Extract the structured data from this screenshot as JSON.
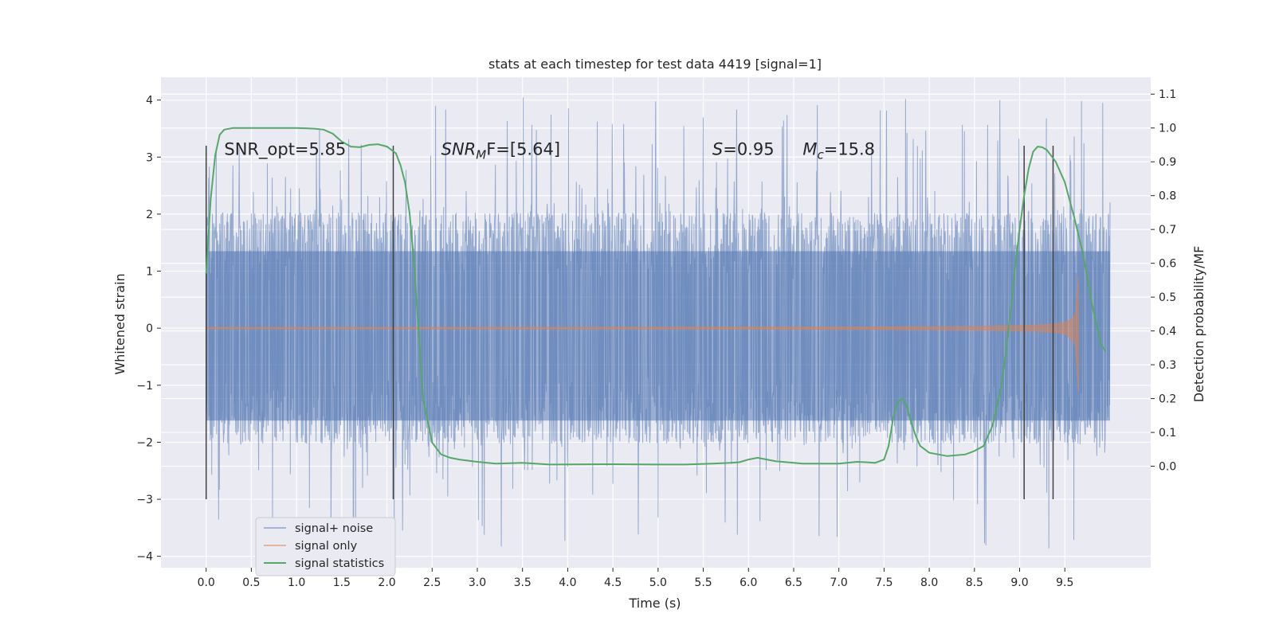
{
  "chart_data": {
    "type": "line",
    "title": "stats at each timestep for test data 4419 [signal=1]",
    "xlabel": "Time (s)",
    "ylabel": "Whitened strain",
    "y2label": "Detection probability/MF",
    "xlim": [
      -0.5,
      10.45
    ],
    "ylim": [
      -4.2,
      4.4
    ],
    "y2lim": [
      -0.3,
      1.15
    ],
    "x_ticks": [
      0.0,
      0.5,
      1.0,
      1.5,
      2.0,
      2.5,
      3.0,
      3.5,
      4.0,
      4.5,
      5.0,
      5.5,
      6.0,
      6.5,
      7.0,
      7.5,
      8.0,
      8.5,
      9.0,
      9.5
    ],
    "x_tick_labels": [
      "0.0",
      "0.5",
      "1.0",
      "1.5",
      "2.0",
      "2.5",
      "3.0",
      "3.5",
      "4.0",
      "4.5",
      "5.0",
      "5.5",
      "6.0",
      "6.5",
      "7.0",
      "7.5",
      "8.0",
      "8.5",
      "9.0",
      "9.5"
    ],
    "y_ticks": [
      -4,
      -3,
      -2,
      -1,
      0,
      1,
      2,
      3,
      4
    ],
    "y_tick_labels": [
      "−4",
      "−3",
      "−2",
      "−1",
      "0",
      "1",
      "2",
      "3",
      "4"
    ],
    "y2_ticks": [
      0.0,
      0.1,
      0.2,
      0.3,
      0.4,
      0.5,
      0.6,
      0.7,
      0.8,
      0.9,
      1.0,
      1.1
    ],
    "y2_tick_labels": [
      "0.0",
      "0.1",
      "0.2",
      "0.3",
      "0.4",
      "0.5",
      "0.6",
      "0.7",
      "0.8",
      "0.9",
      "1.0",
      "1.1"
    ],
    "grid": true,
    "legend_position": "bottom-left",
    "series": [
      {
        "name": "signal+ noise",
        "color": "#4c72b0",
        "kind": "noise",
        "x_range": [
          0.0,
          10.0
        ],
        "core_amplitude": 1.35,
        "peak_range": [
          2.0,
          4.05
        ],
        "min_range": [
          -3.9,
          -2.0
        ]
      },
      {
        "name": "signal only",
        "color": "#dd8452",
        "kind": "chirp",
        "x_range": [
          0.0,
          9.65
        ],
        "peak_time": 9.65,
        "peak_amplitude": 0.9
      },
      {
        "name": "signal statistics",
        "color": "#55a868",
        "axis": "right",
        "x": [
          0.0,
          0.05,
          0.1,
          0.15,
          0.2,
          0.3,
          0.5,
          1.0,
          1.2,
          1.3,
          1.4,
          1.5,
          1.6,
          1.7,
          1.8,
          1.9,
          2.0,
          2.1,
          2.15,
          2.2,
          2.25,
          2.3,
          2.35,
          2.4,
          2.5,
          2.6,
          2.7,
          2.8,
          3.0,
          3.2,
          3.5,
          3.8,
          4.5,
          5.0,
          5.3,
          5.6,
          5.8,
          5.9,
          6.0,
          6.1,
          6.3,
          6.6,
          7.0,
          7.2,
          7.3,
          7.4,
          7.5,
          7.55,
          7.6,
          7.65,
          7.7,
          7.75,
          7.8,
          7.85,
          7.9,
          8.0,
          8.2,
          8.4,
          8.5,
          8.6,
          8.7,
          8.75,
          8.8,
          8.85,
          8.9,
          8.95,
          9.0,
          9.05,
          9.1,
          9.15,
          9.2,
          9.25,
          9.3,
          9.4,
          9.5,
          9.6,
          9.7,
          9.8,
          9.9,
          9.95
        ],
        "y": [
          0.57,
          0.79,
          0.92,
          0.98,
          0.995,
          1.0,
          1.0,
          1.0,
          0.998,
          0.995,
          0.983,
          0.96,
          0.945,
          0.943,
          0.95,
          0.952,
          0.945,
          0.925,
          0.89,
          0.84,
          0.75,
          0.6,
          0.4,
          0.2,
          0.07,
          0.035,
          0.025,
          0.02,
          0.013,
          0.008,
          0.01,
          0.005,
          0.006,
          0.005,
          0.005,
          0.008,
          0.01,
          0.012,
          0.02,
          0.025,
          0.015,
          0.008,
          0.008,
          0.013,
          0.012,
          0.01,
          0.02,
          0.06,
          0.14,
          0.19,
          0.2,
          0.18,
          0.13,
          0.09,
          0.06,
          0.04,
          0.03,
          0.035,
          0.045,
          0.06,
          0.12,
          0.18,
          0.24,
          0.34,
          0.46,
          0.59,
          0.7,
          0.8,
          0.88,
          0.93,
          0.945,
          0.943,
          0.935,
          0.9,
          0.84,
          0.74,
          0.63,
          0.48,
          0.36,
          0.34
        ]
      }
    ],
    "vertical_markers": [
      0.0,
      2.07,
      9.05,
      9.37
    ],
    "vertical_marker_range": [
      -3.0,
      3.2
    ],
    "annotations": [
      {
        "text": "SNR_opt=5.85",
        "x": 0.2,
        "y": 3.15
      },
      {
        "text_parts": [
          "SNR",
          "M",
          "F=[5.64]"
        ],
        "x": 2.6,
        "y": 3.15
      },
      {
        "text_parts": [
          "S",
          "",
          "=0.95"
        ],
        "x": 5.6,
        "y": 3.15
      },
      {
        "text_parts": [
          "M",
          "c",
          "=15.8"
        ],
        "x": 6.6,
        "y": 3.15
      }
    ]
  },
  "colors": {
    "axes_background": "#eaeaf2",
    "grid": "#ffffff",
    "marker_line": "#404040"
  }
}
